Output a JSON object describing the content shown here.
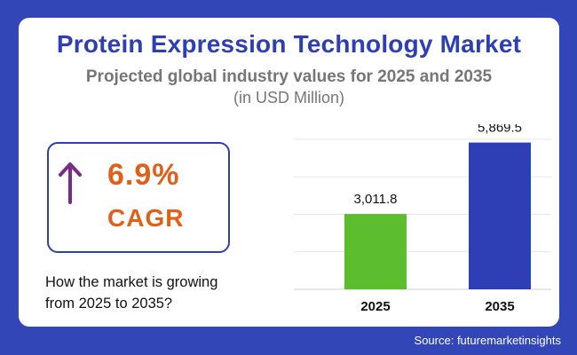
{
  "header": {
    "title": "Protein Expression Technology Market",
    "subtitle": "Projected global industry values for 2025 and 2035",
    "unit": "(in USD Million)"
  },
  "cagr": {
    "value": "6.9%",
    "label": "CAGR",
    "arrow_color": "#7b2a8c",
    "color": "#e0601a"
  },
  "question": "How the market is growing from 2025 to 2035?",
  "source": "Source: futuremarketinsights",
  "colors": {
    "background": "#3246b8",
    "title": "#2e3fb5"
  },
  "chart_data": {
    "type": "bar",
    "title": "",
    "xlabel": "",
    "ylabel": "",
    "categories": [
      "2025",
      "2035"
    ],
    "values": [
      3011.8,
      5869.5
    ],
    "value_labels": [
      "3,011.8",
      "5,869.5"
    ],
    "bar_colors": [
      "#5cbd2e",
      "#2e3fb5"
    ],
    "ylim": [
      0,
      6600
    ],
    "grid": true,
    "legend": "none"
  }
}
